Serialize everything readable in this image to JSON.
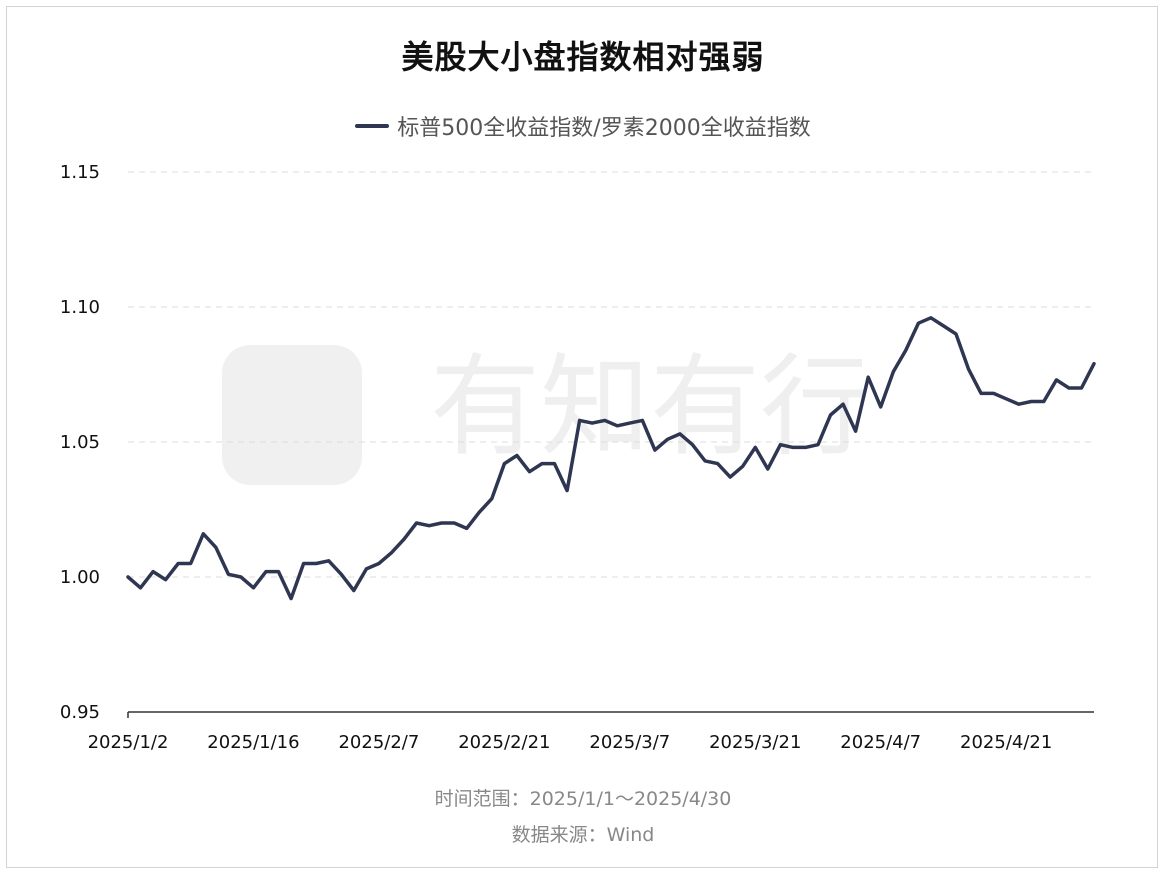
{
  "chart_data": {
    "type": "line",
    "title": "美股大小盘指数相对强弱",
    "series": [
      {
        "name": "标普500全收益指数/罗素2000全收益指数",
        "color": "#2f3651",
        "values": [
          1.0,
          0.996,
          1.002,
          0.999,
          1.005,
          1.005,
          1.016,
          1.011,
          1.001,
          1.0,
          0.996,
          1.002,
          1.002,
          0.992,
          1.005,
          1.005,
          1.006,
          1.001,
          0.995,
          1.003,
          1.005,
          1.009,
          1.014,
          1.02,
          1.019,
          1.02,
          1.02,
          1.018,
          1.024,
          1.029,
          1.042,
          1.045,
          1.039,
          1.042,
          1.042,
          1.032,
          1.058,
          1.057,
          1.058,
          1.056,
          1.057,
          1.058,
          1.047,
          1.051,
          1.053,
          1.049,
          1.043,
          1.042,
          1.037,
          1.041,
          1.048,
          1.04,
          1.049,
          1.048,
          1.048,
          1.049,
          1.06,
          1.064,
          1.054,
          1.074,
          1.063,
          1.076,
          1.084,
          1.094,
          1.096,
          1.093,
          1.09,
          1.077,
          1.068,
          1.068,
          1.066,
          1.064,
          1.065,
          1.065,
          1.073,
          1.07,
          1.07,
          1.079
        ]
      }
    ],
    "x_tick_labels": [
      "2025/1/2",
      "2025/1/16",
      "2025/2/7",
      "2025/2/21",
      "2025/3/7",
      "2025/3/21",
      "2025/4/7",
      "2025/4/21"
    ],
    "x_tick_indices": [
      0,
      10,
      20,
      30,
      40,
      50,
      60,
      70
    ],
    "y_ticks": [
      "1.15",
      "1.10",
      "1.05",
      "1.00",
      "0.95"
    ],
    "ylim": [
      0.95,
      1.15
    ],
    "grid": "horizontal dashed",
    "legend_position": "top-center"
  },
  "footer": {
    "range": "时间范围：2025/1/1～2025/4/30",
    "source": "数据来源：Wind"
  },
  "watermark_text": "有知有行"
}
